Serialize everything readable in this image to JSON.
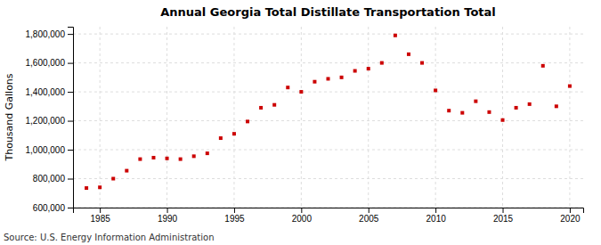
{
  "chart_data": {
    "type": "scatter",
    "title": "Annual Georgia Total Distillate Transportation Total",
    "ylabel": "Thousand Gallons",
    "annotations": [
      "Source: U.S. Energy Information Administration"
    ],
    "x": [
      1984,
      1985,
      1986,
      1987,
      1988,
      1989,
      1990,
      1991,
      1992,
      1993,
      1994,
      1995,
      1996,
      1997,
      1998,
      1999,
      2000,
      2001,
      2002,
      2003,
      2004,
      2005,
      2006,
      2007,
      2008,
      2009,
      2010,
      2011,
      2012,
      2013,
      2014,
      2015,
      2016,
      2017,
      2018,
      2019,
      2020
    ],
    "values": [
      735000,
      740000,
      800000,
      855000,
      935000,
      945000,
      940000,
      935000,
      955000,
      975000,
      1080000,
      1110000,
      1195000,
      1290000,
      1310000,
      1430000,
      1400000,
      1470000,
      1490000,
      1500000,
      1545000,
      1560000,
      1600000,
      1790000,
      1660000,
      1600000,
      1410000,
      1270000,
      1255000,
      1335000,
      1260000,
      1205000,
      1290000,
      1315000,
      1580000,
      1300000,
      1440000
    ],
    "color": "#cc0000",
    "marker": "square",
    "grid": true,
    "xlim": [
      1983,
      2021
    ],
    "xticks": [
      1985,
      1990,
      1995,
      2000,
      2005,
      2010,
      2015,
      2020
    ],
    "ylim": [
      600000,
      1850000
    ],
    "yticks": [
      {
        "value": 600000,
        "label": "600,000"
      },
      {
        "value": 800000,
        "label": "800,000"
      },
      {
        "value": 1000000,
        "label": "1,000,000"
      },
      {
        "value": 1200000,
        "label": "1,200,000"
      },
      {
        "value": 1400000,
        "label": "1,400,000"
      },
      {
        "value": 1600000,
        "label": "1,600,000"
      },
      {
        "value": 1800000,
        "label": "1,800,000"
      }
    ]
  }
}
